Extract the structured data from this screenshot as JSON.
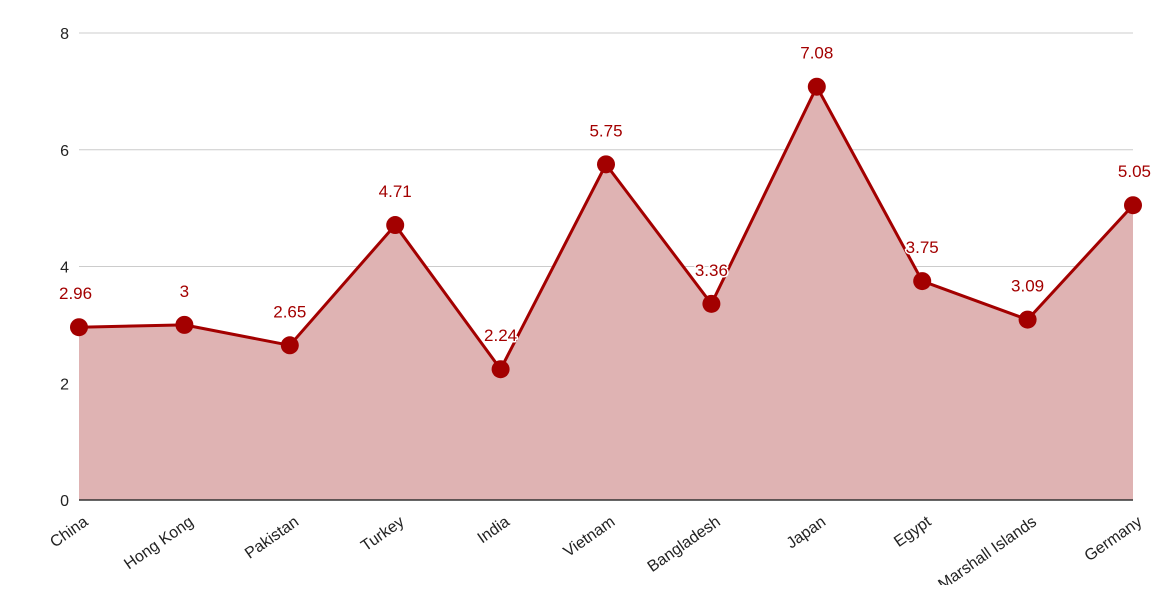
{
  "chart_data": {
    "type": "area",
    "title": "",
    "xlabel": "",
    "ylabel": "",
    "ylim": [
      0,
      8
    ],
    "yticks": [
      0,
      2,
      4,
      6,
      8
    ],
    "grid": true,
    "legend": "none",
    "categories": [
      "China",
      "Hong Kong",
      "Pakistan",
      "Turkey",
      "India",
      "Vietnam",
      "Bangladesh",
      "Japan",
      "Egypt",
      "Marshall Islands",
      "Germany"
    ],
    "series": [
      {
        "values": [
          2.96,
          3,
          2.65,
          4.71,
          2.24,
          5.75,
          3.36,
          7.08,
          3.75,
          3.09,
          5.05
        ],
        "data_labels": [
          "2.96",
          "3",
          "2.65",
          "4.71",
          "2.24",
          "5.75",
          "3.36",
          "7.08",
          "3.75",
          "3.09",
          "5.05"
        ]
      }
    ],
    "colors": {
      "line": "#a30000",
      "area": "#dfb3b3",
      "label": "#a30000",
      "grid": "#cccccc",
      "axis": "#333333",
      "tick_text": "#222222"
    }
  }
}
